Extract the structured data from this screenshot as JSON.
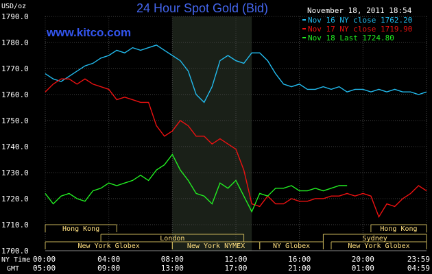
{
  "chart_data": {
    "type": "line",
    "title": "24 Hour Spot Gold (Bid)",
    "watermark": "www.kitco.com",
    "timestamp": "November 18, 2011 18:54",
    "y_unit_label": "USD/oz",
    "ylim": [
      1700,
      1790
    ],
    "y_ticks": [
      "1790.0",
      "1780.0",
      "1770.0",
      "1760.0",
      "1750.0",
      "1740.0",
      "1730.0",
      "1720.0",
      "1710.0",
      "1700.0"
    ],
    "x_axis_labels": {
      "ny_time_label": "NY Time",
      "gmt_label": "GMT",
      "ny_time": [
        "00:00",
        "04:00",
        "08:00",
        "12:00",
        "16:00",
        "20:00",
        "23:59"
      ],
      "gmt": [
        "05:00",
        "09:00",
        "13:00",
        "17:00",
        "21:00",
        "01:00",
        "04:59"
      ]
    },
    "shaded_region_hours": [
      8,
      13
    ],
    "markets": [
      {
        "name": "Hong Kong",
        "start": 0,
        "end": 4.5,
        "row": 0
      },
      {
        "name": "Hong Kong",
        "start": 20.5,
        "end": 24,
        "row": 0
      },
      {
        "name": "London",
        "start": 3.5,
        "end": 12.5,
        "row": 1
      },
      {
        "name": "Sydney",
        "start": 17.5,
        "end": 24,
        "row": 1
      },
      {
        "name": "New York Globex",
        "start": 0,
        "end": 8,
        "row": 2
      },
      {
        "name": "New York NYMEX",
        "start": 8,
        "end": 13.5,
        "row": 2
      },
      {
        "name": "NY Globex",
        "start": 13.5,
        "end": 17.5,
        "row": 2
      },
      {
        "name": "New York Globex",
        "start": 18,
        "end": 24,
        "row": 2
      }
    ],
    "series": [
      {
        "name": "Nov 16 NY close 1762.20",
        "color": "#22bbee",
        "x": [
          0,
          0.5,
          1,
          1.5,
          2,
          2.5,
          3,
          3.5,
          4,
          4.5,
          5,
          5.5,
          6,
          6.5,
          7,
          7.5,
          8,
          8.5,
          9,
          9.5,
          10,
          10.5,
          11,
          11.5,
          12,
          12.5,
          13,
          13.5,
          14,
          14.5,
          15,
          15.5,
          16,
          16.5,
          17,
          17.5,
          18,
          18.5,
          19,
          19.5,
          20,
          20.5,
          21,
          21.5,
          22,
          22.5,
          23,
          23.5,
          24
        ],
        "values": [
          1768,
          1766,
          1765,
          1767,
          1769,
          1771,
          1772,
          1774,
          1775,
          1777,
          1776,
          1778,
          1777,
          1778,
          1779,
          1777,
          1775,
          1773,
          1769,
          1760,
          1757,
          1763,
          1773,
          1775,
          1773,
          1772,
          1776,
          1776,
          1773,
          1768,
          1764,
          1763,
          1764,
          1762,
          1762,
          1763,
          1762,
          1763,
          1761,
          1762,
          1762,
          1761,
          1762,
          1761,
          1762,
          1761,
          1761,
          1760,
          1761
        ]
      },
      {
        "name": "Nov 17 NY close 1719.90",
        "color": "#ee1111",
        "x": [
          0,
          0.5,
          1,
          1.5,
          2,
          2.5,
          3,
          3.5,
          4,
          4.5,
          5,
          5.5,
          6,
          6.5,
          7,
          7.5,
          8,
          8.5,
          9,
          9.5,
          10,
          10.5,
          11,
          11.5,
          12,
          12.5,
          13,
          13.5,
          14,
          14.5,
          15,
          15.5,
          16,
          16.5,
          17,
          17.5,
          18,
          18.5,
          19,
          19.5,
          20,
          20.5,
          21,
          21.5,
          22,
          22.5,
          23,
          23.5,
          24
        ],
        "values": [
          1761,
          1764,
          1766,
          1766,
          1764,
          1766,
          1764,
          1763,
          1762,
          1758,
          1759,
          1758,
          1757,
          1757,
          1748,
          1744,
          1746,
          1750,
          1748,
          1744,
          1744,
          1741,
          1743,
          1741,
          1739,
          1731,
          1718,
          1717,
          1721,
          1718,
          1718,
          1720,
          1719,
          1719,
          1720,
          1720,
          1721,
          1721,
          1722,
          1721,
          1722,
          1721,
          1713,
          1718,
          1717,
          1720,
          1722,
          1725,
          1723
        ]
      },
      {
        "name": "Nov 18 Last 1724.80",
        "color": "#22ee22",
        "x": [
          0,
          0.5,
          1,
          1.5,
          2,
          2.5,
          3,
          3.5,
          4,
          4.5,
          5,
          5.5,
          6,
          6.5,
          7,
          7.5,
          8,
          8.5,
          9,
          9.5,
          10,
          10.5,
          11,
          11.5,
          12,
          12.5,
          13,
          13.5,
          14,
          14.5,
          15,
          15.5,
          16,
          16.5,
          17,
          17.5,
          18,
          18.5,
          19
        ],
        "values": [
          1722,
          1718,
          1721,
          1722,
          1720,
          1719,
          1723,
          1724,
          1726,
          1725,
          1726,
          1727,
          1729,
          1727,
          1731,
          1733,
          1737,
          1731,
          1727,
          1722,
          1721,
          1718,
          1726,
          1724,
          1727,
          1721,
          1715,
          1722,
          1721,
          1724,
          1724,
          1725,
          1723,
          1723,
          1724,
          1723,
          1724,
          1725,
          1725
        ]
      }
    ]
  }
}
